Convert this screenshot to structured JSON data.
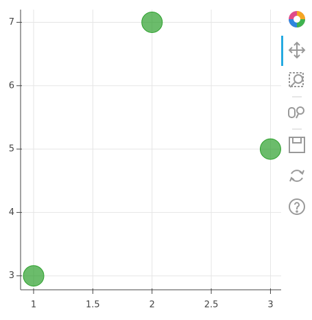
{
  "chart_data": {
    "type": "scatter",
    "x": [
      1,
      2,
      3
    ],
    "values": [
      3,
      7,
      5
    ],
    "color": "#2ca02c",
    "xlim": [
      0.89,
      3.09
    ],
    "ylim": [
      2.78,
      7.2
    ],
    "xticks": [
      1,
      1.5,
      2,
      2.5,
      3
    ],
    "yticks": [
      3,
      4,
      5,
      6,
      7
    ],
    "grid": true
  }
}
